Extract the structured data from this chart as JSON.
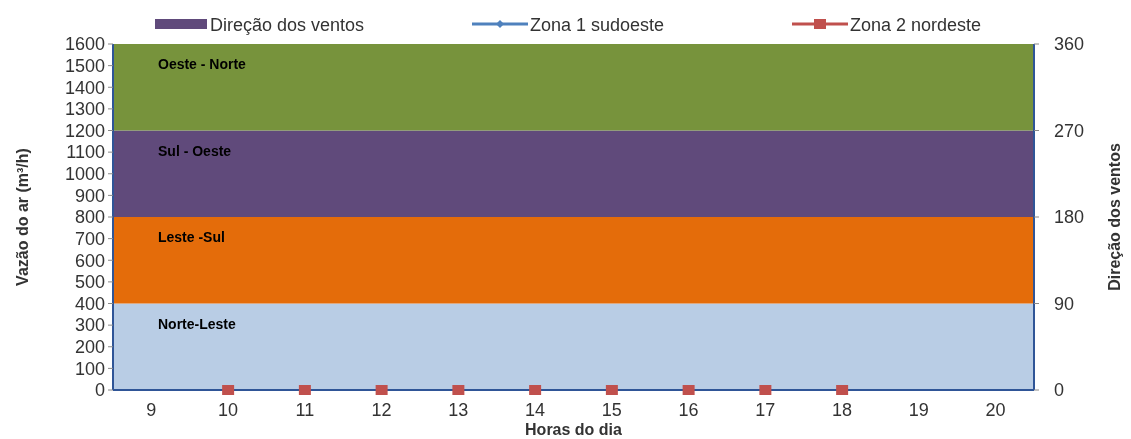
{
  "chart_data": {
    "type": "scatter",
    "xlabel": "Horas do dia",
    "ylabel": "Vazão do ar (m³/h)",
    "y2label": "Direção dos ventos",
    "x": [
      10,
      11,
      12,
      13,
      14,
      15,
      16,
      17,
      18
    ],
    "xlim": [
      8.5,
      20.5
    ],
    "xticks": [
      9,
      10,
      11,
      12,
      13,
      14,
      15,
      16,
      17,
      18,
      19,
      20
    ],
    "ylim": [
      0,
      1600
    ],
    "yticks": [
      0,
      100,
      200,
      300,
      400,
      500,
      600,
      700,
      800,
      900,
      1000,
      1100,
      1200,
      1300,
      1400,
      1500,
      1600
    ],
    "y2lim": [
      0,
      360
    ],
    "y2ticks": [
      0,
      90,
      180,
      270,
      360
    ],
    "series": [
      {
        "name": "Direção dos ventos",
        "type": "area",
        "color": "#604a7b",
        "values": [
          null,
          null,
          null,
          null,
          null,
          null,
          null,
          null,
          null
        ]
      },
      {
        "name": "Zona 1 sudoeste",
        "type": "line",
        "color": "#4f81bd",
        "marker": "diamond",
        "values": [
          null,
          null,
          null,
          null,
          null,
          null,
          null,
          null,
          null
        ]
      },
      {
        "name": "Zona 2 nordeste",
        "color": "#c0504d",
        "marker": "square",
        "values": [
          0,
          0,
          0,
          0,
          0,
          0,
          0,
          0,
          0
        ]
      }
    ],
    "bands": [
      {
        "axis": "y2",
        "from": 0,
        "to": 90,
        "label": "Norte-Leste",
        "color": "#b9cde5"
      },
      {
        "axis": "y2",
        "from": 90,
        "to": 180,
        "label": "Leste -Sul",
        "color": "#e46c0a"
      },
      {
        "axis": "y2",
        "from": 180,
        "to": 270,
        "label": "Sul - Oeste",
        "color": "#604a7b"
      },
      {
        "axis": "y2",
        "from": 270,
        "to": 360,
        "label": "Oeste - Norte",
        "color": "#77933c"
      }
    ],
    "legend": "top"
  }
}
